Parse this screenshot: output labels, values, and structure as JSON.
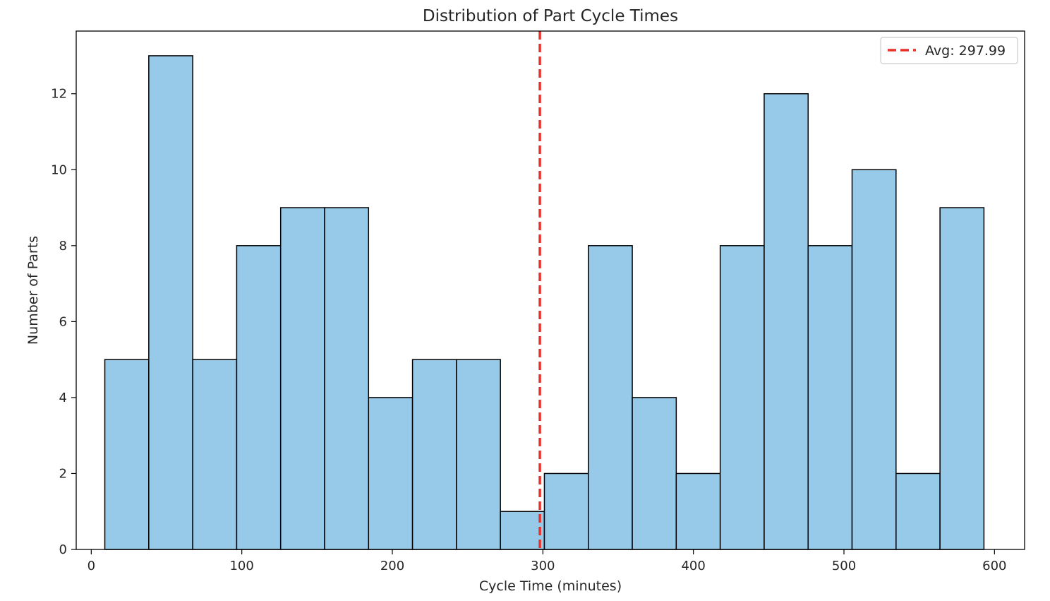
{
  "chart_data": {
    "type": "bar",
    "subtype": "histogram",
    "title": "Distribution of Part Cycle Times",
    "xlabel": "Cycle Time (minutes)",
    "ylabel": "Number of Parts",
    "xlim": [
      -10,
      620
    ],
    "ylim": [
      0,
      13.65
    ],
    "xticks": [
      0,
      100,
      200,
      300,
      400,
      500,
      600
    ],
    "yticks": [
      0,
      2,
      4,
      6,
      8,
      10,
      12
    ],
    "bin_edges": [
      9.0,
      38.2,
      67.4,
      96.6,
      125.8,
      155.0,
      184.2,
      213.4,
      242.6,
      271.8,
      301.0,
      330.2,
      359.4,
      388.6,
      417.8,
      447.0,
      476.2,
      505.4,
      534.6,
      563.8,
      593.0
    ],
    "values": [
      5,
      13,
      5,
      8,
      9,
      9,
      4,
      5,
      5,
      1,
      2,
      8,
      4,
      2,
      8,
      12,
      8,
      10,
      2,
      9
    ],
    "bar_color": "#97cae8",
    "bar_edge_color": "#000000",
    "average": {
      "value": 297.99,
      "label": "Avg: 297.99",
      "color": "#e8312b",
      "style": "dashed"
    },
    "legend_position": "top-right",
    "grid": false
  }
}
